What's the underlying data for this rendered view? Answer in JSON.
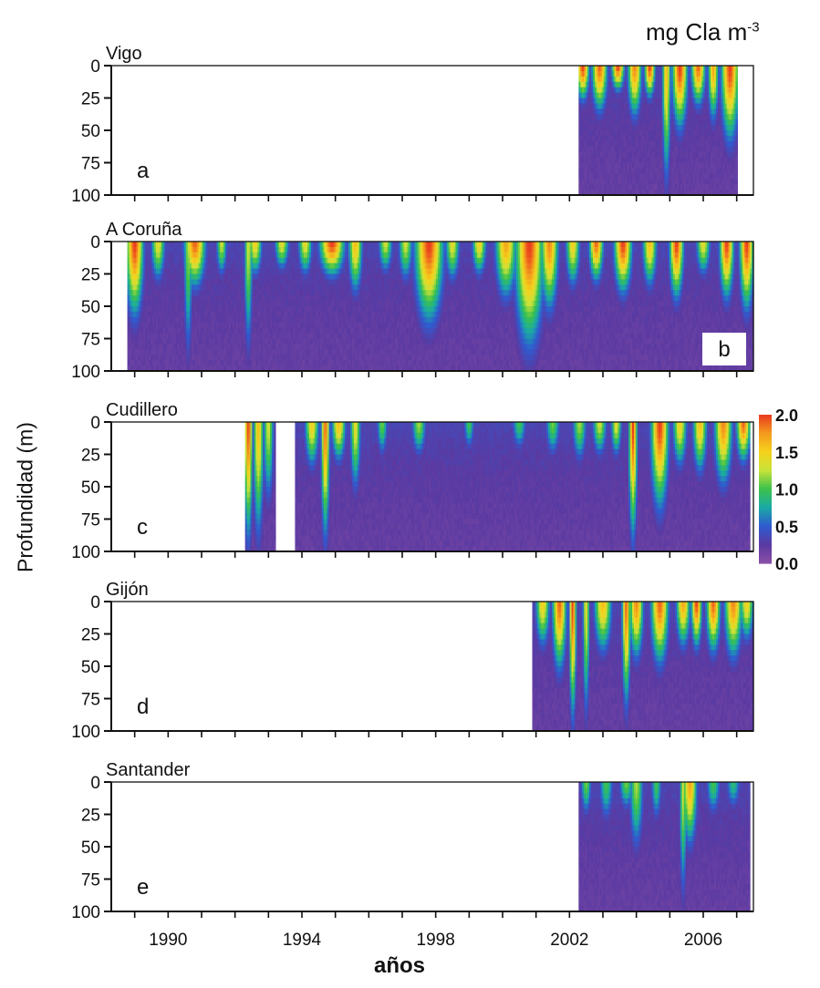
{
  "figure": {
    "unit_label": "mg Cla m",
    "unit_superscript": "-3",
    "ylabel": "Profundidad (m)",
    "xlabel": "años",
    "colors": {
      "empty": "#ffffff",
      "ramp": [
        "#8a4fa6",
        "#5a3aa2",
        "#2f5bd0",
        "#1aa9a6",
        "#3cc24b",
        "#c8e23a",
        "#f5d21c",
        "#f39a1e",
        "#ea3a1e"
      ]
    }
  },
  "chart_data": {
    "type": "heatmap",
    "x_ticks": [
      "1990",
      "1994",
      "1998",
      "2002",
      "2006"
    ],
    "xlim": [
      1988.3,
      2007.5
    ],
    "y_ticks": [
      "0",
      "25",
      "50",
      "75",
      "100"
    ],
    "ylim": [
      0,
      100
    ],
    "colorbar": {
      "ticks": [
        "2.0",
        "1.5",
        "1.0",
        "0.5",
        "0.0"
      ],
      "range": [
        0,
        2.0
      ]
    },
    "panels": [
      {
        "station": "Vigo",
        "letter": "a",
        "data_start": 2002.3,
        "data_end": 2007.0,
        "gaps": [],
        "blooms": [
          [
            2002.4,
            0.18,
            30,
            2.0
          ],
          [
            2002.9,
            0.22,
            40,
            1.9
          ],
          [
            2003.45,
            0.18,
            22,
            2.0
          ],
          [
            2003.95,
            0.2,
            45,
            1.8
          ],
          [
            2004.4,
            0.15,
            28,
            2.0
          ],
          [
            2004.9,
            0.12,
            100,
            1.6
          ],
          [
            2005.3,
            0.22,
            55,
            2.0
          ],
          [
            2005.85,
            0.2,
            35,
            1.9
          ],
          [
            2006.3,
            0.15,
            48,
            1.7
          ],
          [
            2006.8,
            0.25,
            65,
            2.0
          ]
        ]
      },
      {
        "station": "A Coruña",
        "letter": "b",
        "data_start": 1988.8,
        "data_end": 2007.5,
        "gaps": [],
        "blooms": [
          [
            1989.0,
            0.25,
            65,
            2.0
          ],
          [
            1989.7,
            0.2,
            35,
            1.4
          ],
          [
            1990.6,
            0.12,
            100,
            1.2
          ],
          [
            1990.8,
            0.3,
            40,
            1.9
          ],
          [
            1991.6,
            0.15,
            30,
            1.3
          ],
          [
            1992.4,
            0.12,
            95,
            1.3
          ],
          [
            1992.6,
            0.2,
            30,
            1.5
          ],
          [
            1993.4,
            0.2,
            25,
            1.4
          ],
          [
            1994.1,
            0.2,
            30,
            1.4
          ],
          [
            1994.9,
            0.35,
            30,
            2.0
          ],
          [
            1995.6,
            0.2,
            45,
            1.6
          ],
          [
            1996.5,
            0.2,
            28,
            1.3
          ],
          [
            1997.1,
            0.2,
            35,
            1.3
          ],
          [
            1997.8,
            0.4,
            70,
            2.0
          ],
          [
            1998.5,
            0.2,
            35,
            1.4
          ],
          [
            1999.3,
            0.2,
            30,
            1.5
          ],
          [
            2000.1,
            0.3,
            50,
            1.7
          ],
          [
            2000.8,
            0.4,
            90,
            2.0
          ],
          [
            2001.4,
            0.25,
            60,
            1.8
          ],
          [
            2002.1,
            0.2,
            40,
            1.5
          ],
          [
            2002.8,
            0.2,
            35,
            1.9
          ],
          [
            2003.6,
            0.25,
            45,
            2.0
          ],
          [
            2004.4,
            0.2,
            40,
            1.6
          ],
          [
            2005.2,
            0.2,
            50,
            2.0
          ],
          [
            2006.0,
            0.2,
            30,
            1.4
          ],
          [
            2006.7,
            0.2,
            50,
            2.0
          ],
          [
            2007.3,
            0.2,
            60,
            2.0
          ]
        ]
      },
      {
        "station": "Cudillero",
        "letter": "c",
        "data_start": 1992.3,
        "data_end": 2007.4,
        "gaps": [
          [
            1993.2,
            1993.8
          ]
        ],
        "blooms": [
          [
            1992.4,
            0.12,
            100,
            2.0
          ],
          [
            1992.7,
            0.15,
            100,
            1.6
          ],
          [
            1993.0,
            0.15,
            70,
            1.3
          ],
          [
            1994.3,
            0.2,
            40,
            1.5
          ],
          [
            1994.7,
            0.12,
            100,
            1.9
          ],
          [
            1995.1,
            0.2,
            35,
            1.6
          ],
          [
            1995.6,
            0.15,
            60,
            1.4
          ],
          [
            1996.4,
            0.15,
            30,
            1.1
          ],
          [
            1997.5,
            0.2,
            30,
            1.2
          ],
          [
            1999.0,
            0.15,
            25,
            1.0
          ],
          [
            2000.5,
            0.2,
            25,
            1.0
          ],
          [
            2001.5,
            0.2,
            30,
            1.1
          ],
          [
            2002.3,
            0.2,
            35,
            1.2
          ],
          [
            2002.9,
            0.2,
            30,
            1.3
          ],
          [
            2003.4,
            0.15,
            30,
            1.4
          ],
          [
            2003.9,
            0.12,
            100,
            2.0
          ],
          [
            2004.7,
            0.25,
            75,
            2.0
          ],
          [
            2005.3,
            0.2,
            40,
            1.5
          ],
          [
            2005.9,
            0.2,
            45,
            1.6
          ],
          [
            2006.6,
            0.25,
            55,
            1.8
          ],
          [
            2007.2,
            0.2,
            35,
            1.9
          ]
        ]
      },
      {
        "station": "Gijón",
        "letter": "d",
        "data_start": 2000.9,
        "data_end": 2007.5,
        "gaps": [],
        "blooms": [
          [
            2001.2,
            0.2,
            40,
            1.5
          ],
          [
            2001.7,
            0.2,
            60,
            1.9
          ],
          [
            2002.1,
            0.1,
            100,
            2.0
          ],
          [
            2002.5,
            0.1,
            100,
            1.4
          ],
          [
            2003.0,
            0.25,
            45,
            1.6
          ],
          [
            2003.7,
            0.12,
            90,
            1.9
          ],
          [
            2004.0,
            0.2,
            50,
            1.8
          ],
          [
            2004.7,
            0.25,
            55,
            1.9
          ],
          [
            2005.4,
            0.2,
            40,
            1.7
          ],
          [
            2005.8,
            0.15,
            40,
            2.0
          ],
          [
            2006.3,
            0.2,
            45,
            1.9
          ],
          [
            2006.9,
            0.25,
            50,
            1.8
          ],
          [
            2007.3,
            0.2,
            35,
            1.5
          ]
        ]
      },
      {
        "station": "Santander",
        "letter": "e",
        "data_start": 2002.3,
        "data_end": 2007.4,
        "gaps": [],
        "blooms": [
          [
            2002.5,
            0.15,
            30,
            1.1
          ],
          [
            2003.1,
            0.2,
            35,
            1.0
          ],
          [
            2003.7,
            0.2,
            25,
            1.1
          ],
          [
            2004.0,
            0.2,
            60,
            1.2
          ],
          [
            2004.6,
            0.15,
            35,
            1.0
          ],
          [
            2005.4,
            0.1,
            100,
            1.3
          ],
          [
            2005.6,
            0.2,
            55,
            1.7
          ],
          [
            2006.3,
            0.2,
            30,
            1.0
          ],
          [
            2006.9,
            0.2,
            25,
            0.9
          ]
        ]
      }
    ]
  }
}
